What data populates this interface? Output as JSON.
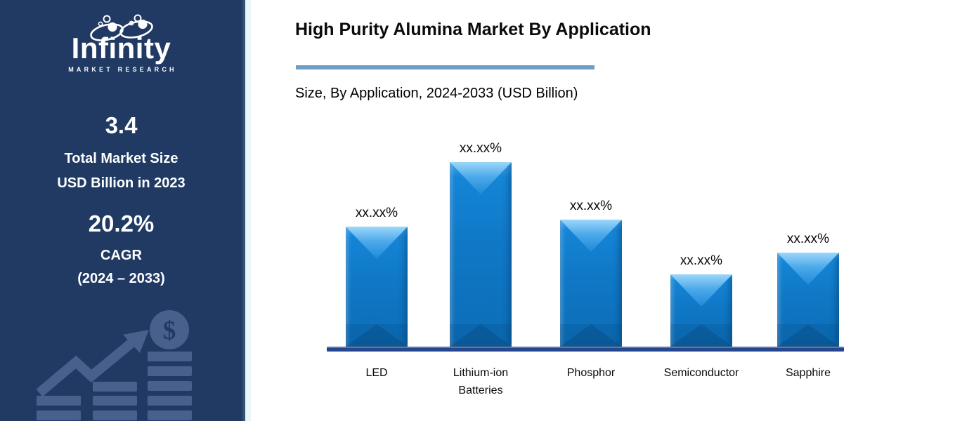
{
  "sidebar": {
    "logo": {
      "name": "Infinity",
      "tagline": "MARKET RESEARCH"
    },
    "stat_market_size": {
      "value": "3.4",
      "line1": "Total Market Size",
      "line2": "USD Billion in 2023"
    },
    "stat_cagr": {
      "value": "20.2%",
      "line1": "CAGR",
      "line2": "(2024 – 2033)"
    },
    "decor": {
      "dollar_sign": "$"
    },
    "icons": [
      "infinity-loop-icon",
      "bar-stack-icon",
      "growth-arrow-icon",
      "dollar-coin-icon"
    ],
    "colors": {
      "background": "#203a64",
      "icon": "#47618c",
      "text": "#ffffff",
      "edge_pale": "#e9f5f9"
    }
  },
  "header": {
    "title": "High Purity Alumina Market By Application",
    "subtitle": "Size, By Application, 2024-2033 (USD Billion)",
    "divider_color": "#6d9ec3"
  },
  "chart_data": {
    "type": "bar",
    "title": "High Purity Alumina Market By Application",
    "subtitle": "Size, By Application, 2024-2033 (USD Billion)",
    "categories": [
      "LED",
      "Lithium-ion Batteries",
      "Phosphor",
      "Semiconductor",
      "Sapphire"
    ],
    "value_labels": [
      "xx.xx%",
      "xx.xx%",
      "xx.xx%",
      "xx.xx%",
      "xx.xx%"
    ],
    "relative_heights": [
      0.65,
      1.0,
      0.69,
      0.39,
      0.51
    ],
    "xlabel": "",
    "ylabel": "",
    "legend": "none",
    "grid": "off",
    "bar_color": "#0f78c6",
    "bar_highlight": "#9bd7fb",
    "axis_color": "#24478f",
    "label_color": "#0a0a0a"
  }
}
